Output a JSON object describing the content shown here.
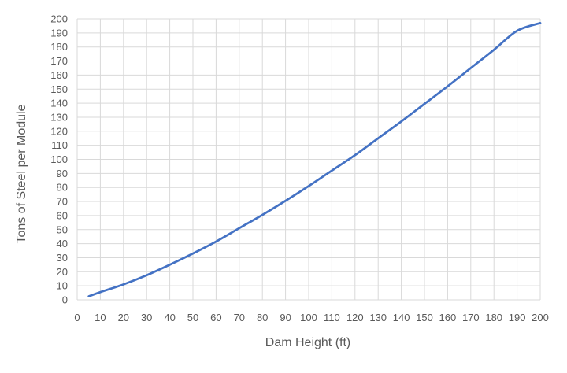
{
  "chart_data": {
    "type": "line",
    "title": "",
    "xlabel": "Dam Height (ft)",
    "ylabel": "Tons of Steel per Module",
    "xlim": [
      0,
      200
    ],
    "ylim": [
      0,
      200
    ],
    "x_ticks": [
      "0",
      "10",
      "20",
      "30",
      "40",
      "50",
      "60",
      "70",
      "80",
      "90",
      "100",
      "110",
      "120",
      "130",
      "140",
      "150",
      "160",
      "170",
      "180",
      "190",
      "200"
    ],
    "y_ticks": [
      "0",
      "10",
      "20",
      "30",
      "40",
      "50",
      "60",
      "70",
      "80",
      "90",
      "100",
      "110",
      "120",
      "130",
      "140",
      "150",
      "160",
      "170",
      "180",
      "190",
      "200"
    ],
    "grid": true,
    "legend": "none",
    "series": [
      {
        "color": "#4472C4",
        "x": [
          5,
          10,
          20,
          30,
          40,
          50,
          60,
          70,
          80,
          90,
          100,
          110,
          120,
          130,
          140,
          150,
          160,
          170,
          180,
          190,
          200
        ],
        "values": [
          2.5,
          5.5,
          11,
          17.5,
          25,
          33,
          41.5,
          51,
          60.5,
          70.5,
          81,
          92,
          103,
          115,
          127,
          139.5,
          152,
          165,
          178,
          191.5,
          197
        ]
      }
    ]
  },
  "colors": {
    "grid": "#d9d9d9",
    "text": "#595959",
    "line": "#4472C4"
  }
}
